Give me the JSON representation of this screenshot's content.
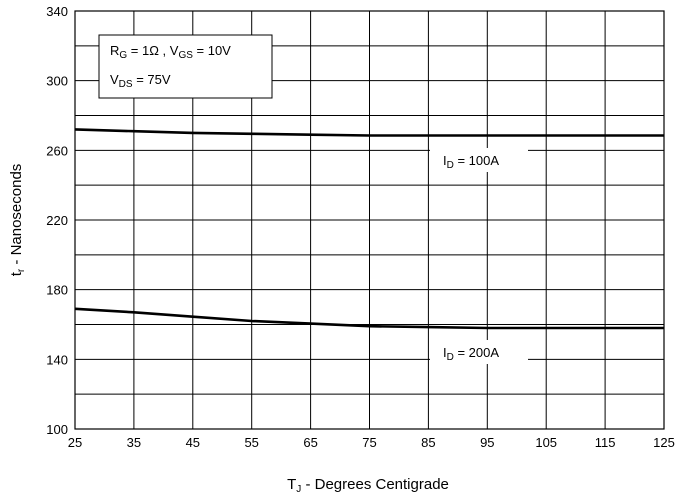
{
  "chart_data": {
    "type": "line",
    "x": [
      25,
      35,
      45,
      55,
      65,
      75,
      85,
      95,
      105,
      115,
      125
    ],
    "series": [
      {
        "name": "I_D = 100A",
        "label_main": "I",
        "label_sub": "D",
        "label_rest": " = 100A",
        "values": [
          272,
          271,
          270,
          269.5,
          269,
          268.5,
          268.5,
          268.5,
          268.5,
          268.5,
          268.5
        ]
      },
      {
        "name": "I_D = 200A",
        "label_main": "I",
        "label_sub": "D",
        "label_rest": " = 200A",
        "values": [
          169,
          167,
          164.5,
          162,
          160.5,
          159,
          158.5,
          158,
          158,
          158,
          158
        ]
      }
    ],
    "xlim": [
      25,
      125
    ],
    "ylim": [
      100,
      340
    ],
    "xticks": [
      25,
      35,
      45,
      55,
      65,
      75,
      85,
      95,
      105,
      115,
      125
    ],
    "yticks": [
      100,
      140,
      180,
      220,
      260,
      300,
      340
    ],
    "grid": true,
    "xlabel": {
      "main": "T",
      "sub": "J",
      "rest": " - Degrees Centigrade"
    },
    "ylabel": {
      "main": "t",
      "sub": "r",
      "rest": " - Nanoseconds"
    },
    "conditions": {
      "line1": {
        "p1_main": "R",
        "p1_sub": "G",
        "p1_rest": " = 1Ω ,  V",
        "p2_sub": "GS",
        "p2_rest": " = 10V"
      },
      "line2": {
        "main": "V",
        "sub": "DS",
        "rest": " = 75V"
      }
    },
    "line_color": "#000000",
    "grid_color": "#000000"
  }
}
